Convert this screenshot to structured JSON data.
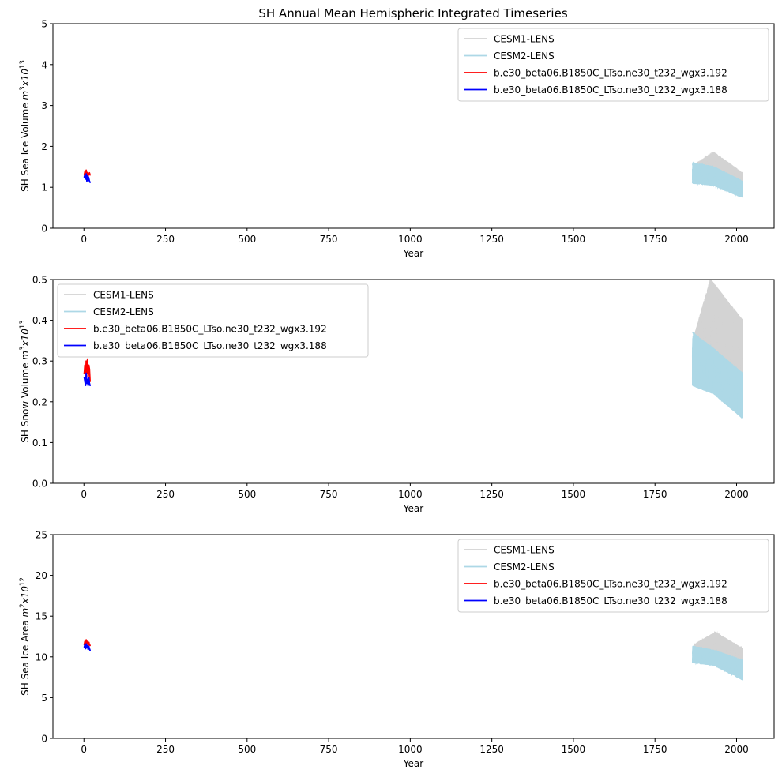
{
  "figure_title": "SH Annual Mean Hemispheric Integrated Timeseries",
  "legend_entries": [
    "CESM1-LENS",
    "CESM2-LENS",
    "b.e30_beta06.B1850C_LTso.ne30_t232_wgx3.192",
    "b.e30_beta06.B1850C_LTso.ne30_t232_wgx3.188"
  ],
  "colors": {
    "CESM1-LENS": "#d3d3d3",
    "CESM2-LENS": "#add8e6",
    "b.e30_beta06.B1850C_LTso.ne30_t232_wgx3.192": "#ff0000",
    "b.e30_beta06.B1850C_LTso.ne30_t232_wgx3.188": "#0000ff"
  },
  "chart_data": [
    {
      "type": "line",
      "title": "SH Annual Mean Hemispheric Integrated Timeseries",
      "xlabel": "Year",
      "ylabel_text": "SH Sea Ice Volume ",
      "ylabel_math": "m",
      "ylabel_math_sup": "3",
      "ylabel_times": "x10",
      "ylabel_exp": "13",
      "xlim": [
        -95,
        2115
      ],
      "ylim": [
        0,
        5
      ],
      "xticks": [
        0,
        250,
        500,
        750,
        1000,
        1250,
        1500,
        1750,
        2000
      ],
      "xtick_labels": [
        "0",
        "250",
        "500",
        "750",
        "1000",
        "1250",
        "1500",
        "1750",
        "2000"
      ],
      "yticks": [
        0,
        1,
        2,
        3,
        4,
        5
      ],
      "ytick_labels": [
        "0",
        "1",
        "2",
        "3",
        "4",
        "5"
      ],
      "legend_loc": "upper right",
      "series": [
        {
          "name": "CESM1-LENS",
          "kind": "band",
          "x_start": 1870,
          "x_end": 2018,
          "start_low": 1.25,
          "start_high": 1.55,
          "peak_x": 1930,
          "peak_low": 1.3,
          "peak_high": 1.85,
          "end_low": 0.9,
          "end_high": 1.35
        },
        {
          "name": "CESM2-LENS",
          "kind": "band",
          "x_start": 1865,
          "x_end": 2018,
          "start_low": 1.1,
          "start_high": 1.6,
          "peak_x": 1930,
          "peak_low": 1.05,
          "peak_high": 1.5,
          "end_low": 0.75,
          "end_high": 1.15
        },
        {
          "name": "b.e30_beta06.B1850C_LTso.ne30_t232_wgx3.192",
          "kind": "line",
          "x": [
            1,
            3,
            5,
            7,
            9,
            11,
            13,
            15,
            17,
            19
          ],
          "y": [
            1.3,
            1.38,
            1.32,
            1.42,
            1.3,
            1.36,
            1.28,
            1.34,
            1.35,
            1.3
          ]
        },
        {
          "name": "b.e30_beta06.B1850C_LTso.ne30_t232_wgx3.188",
          "kind": "line",
          "x": [
            1,
            3,
            5,
            7,
            9,
            11,
            13,
            15,
            17,
            19
          ],
          "y": [
            1.25,
            1.3,
            1.2,
            1.33,
            1.15,
            1.28,
            1.18,
            1.22,
            1.15,
            1.12
          ]
        }
      ]
    },
    {
      "type": "line",
      "title": "",
      "xlabel": "Year",
      "ylabel_text": "SH Snow Volume ",
      "ylabel_math": "m",
      "ylabel_math_sup": "3",
      "ylabel_times": "x10",
      "ylabel_exp": "13",
      "xlim": [
        -95,
        2115
      ],
      "ylim": [
        0,
        0.5
      ],
      "xticks": [
        0,
        250,
        500,
        750,
        1000,
        1250,
        1500,
        1750,
        2000
      ],
      "xtick_labels": [
        "0",
        "250",
        "500",
        "750",
        "1000",
        "1250",
        "1500",
        "1750",
        "2000"
      ],
      "yticks": [
        0,
        0.1,
        0.2,
        0.3,
        0.4,
        0.5
      ],
      "ytick_labels": [
        "0.0",
        "0.1",
        "0.2",
        "0.3",
        "0.4",
        "0.5"
      ],
      "legend_loc": "upper left",
      "series": [
        {
          "name": "CESM1-LENS",
          "kind": "band",
          "x_start": 1870,
          "x_end": 2018,
          "start_low": 0.25,
          "start_high": 0.36,
          "peak_x": 1920,
          "peak_low": 0.3,
          "peak_high": 0.5,
          "end_low": 0.2,
          "end_high": 0.4
        },
        {
          "name": "CESM2-LENS",
          "kind": "band",
          "x_start": 1865,
          "x_end": 2018,
          "start_low": 0.24,
          "start_high": 0.37,
          "peak_x": 1930,
          "peak_low": 0.22,
          "peak_high": 0.33,
          "end_low": 0.16,
          "end_high": 0.27
        },
        {
          "name": "b.e30_beta06.B1850C_LTso.ne30_t232_wgx3.192",
          "kind": "line",
          "x": [
            1,
            3,
            5,
            7,
            9,
            11,
            13,
            15,
            17,
            19
          ],
          "y": [
            0.27,
            0.29,
            0.26,
            0.3,
            0.27,
            0.305,
            0.26,
            0.29,
            0.28,
            0.25
          ]
        },
        {
          "name": "b.e30_beta06.B1850C_LTso.ne30_t232_wgx3.188",
          "kind": "line",
          "x": [
            1,
            3,
            5,
            7,
            9,
            11,
            13,
            15,
            17,
            19
          ],
          "y": [
            0.26,
            0.25,
            0.24,
            0.27,
            0.245,
            0.255,
            0.24,
            0.26,
            0.245,
            0.24
          ]
        }
      ]
    },
    {
      "type": "line",
      "title": "",
      "xlabel": "Year",
      "ylabel_text": "SH Sea Ice Area ",
      "ylabel_math": "m",
      "ylabel_math_sup": "2",
      "ylabel_times": "x10",
      "ylabel_exp": "12",
      "xlim": [
        -95,
        2115
      ],
      "ylim": [
        0,
        25
      ],
      "xticks": [
        0,
        250,
        500,
        750,
        1000,
        1250,
        1500,
        1750,
        2000
      ],
      "xtick_labels": [
        "0",
        "250",
        "500",
        "750",
        "1000",
        "1250",
        "1500",
        "1750",
        "2000"
      ],
      "yticks": [
        0,
        5,
        10,
        15,
        20,
        25
      ],
      "ytick_labels": [
        "0",
        "5",
        "10",
        "15",
        "20",
        "25"
      ],
      "legend_loc": "upper right",
      "series": [
        {
          "name": "CESM1-LENS",
          "kind": "band",
          "x_start": 1870,
          "x_end": 2018,
          "start_low": 9.8,
          "start_high": 11.5,
          "peak_x": 1935,
          "peak_low": 10.2,
          "peak_high": 13.0,
          "end_low": 8.0,
          "end_high": 11.0
        },
        {
          "name": "CESM2-LENS",
          "kind": "band",
          "x_start": 1865,
          "x_end": 2018,
          "start_low": 9.3,
          "start_high": 11.3,
          "peak_x": 1930,
          "peak_low": 9.0,
          "peak_high": 10.8,
          "end_low": 7.2,
          "end_high": 9.6
        },
        {
          "name": "b.e30_beta06.B1850C_LTso.ne30_t232_wgx3.192",
          "kind": "line",
          "x": [
            1,
            3,
            5,
            7,
            9,
            11,
            13,
            15,
            17,
            19
          ],
          "y": [
            11.5,
            11.9,
            11.4,
            12.1,
            11.6,
            11.9,
            11.3,
            11.8,
            11.5,
            11.4
          ]
        },
        {
          "name": "b.e30_beta06.B1850C_LTso.ne30_t232_wgx3.188",
          "kind": "line",
          "x": [
            1,
            3,
            5,
            7,
            9,
            11,
            13,
            15,
            17,
            19
          ],
          "y": [
            11.2,
            11.5,
            11.0,
            11.6,
            11.1,
            11.4,
            10.9,
            11.3,
            11.0,
            10.8
          ]
        }
      ]
    }
  ]
}
